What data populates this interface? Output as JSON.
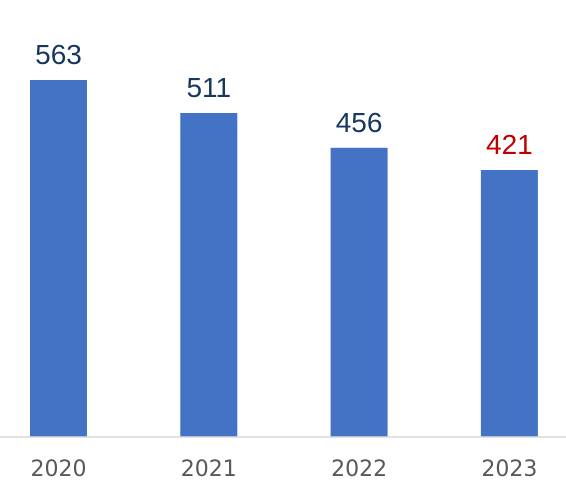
{
  "chart_data": {
    "type": "bar",
    "categories": [
      "2020",
      "2021",
      "2022",
      "2023"
    ],
    "values": [
      563,
      511,
      456,
      421
    ],
    "data_labels": [
      "563",
      "511",
      "456",
      "421"
    ],
    "bar_color": "#4472C4",
    "label_colors": [
      "#17375E",
      "#17375E",
      "#17375E",
      "#C00000"
    ],
    "axis_color": "#D9D9D9",
    "tick_label_color": "#595959",
    "grid": false,
    "legend": "none",
    "title": "",
    "xlabel": "",
    "ylabel": ""
  }
}
